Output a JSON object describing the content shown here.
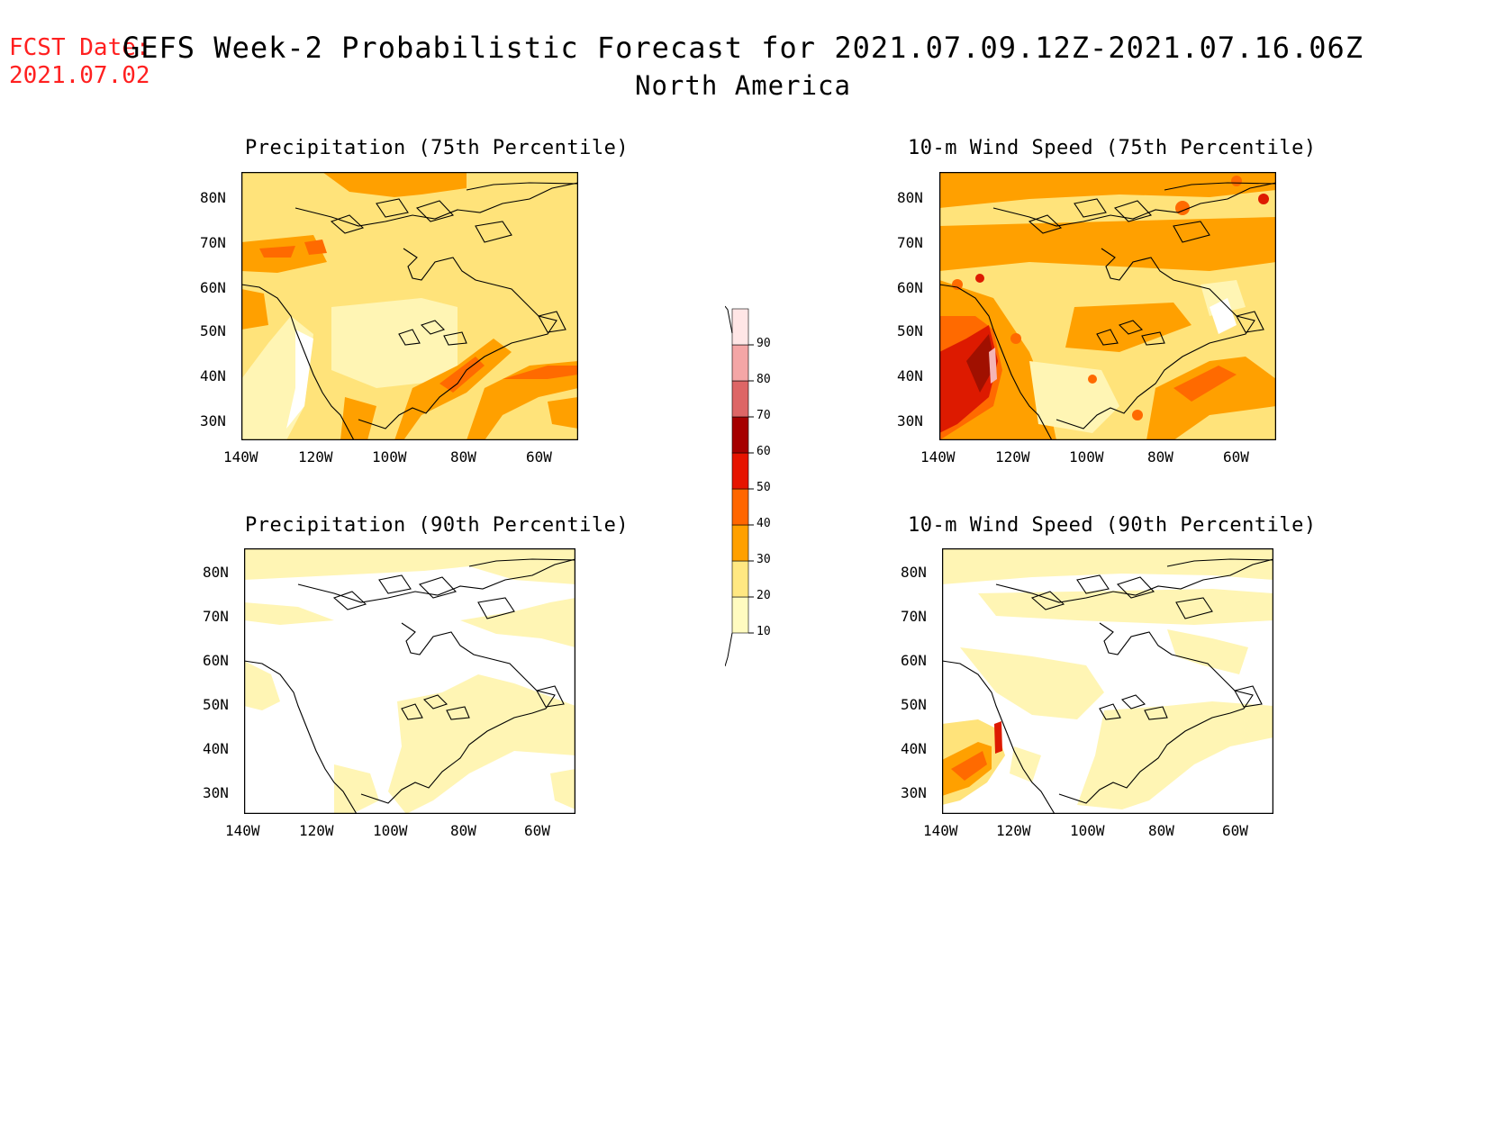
{
  "header": {
    "fcst_label": "FCST Date:",
    "fcst_date": "2021.07.02",
    "title": "GEFS Week-2 Probabilistic Forecast for 2021.07.09.12Z-2021.07.16.06Z",
    "subtitle": "North America"
  },
  "panels": [
    {
      "id": "precip75",
      "title": "Precipitation (75th Percentile)"
    },
    {
      "id": "wind75",
      "title": "10-m Wind Speed (75th Percentile)"
    },
    {
      "id": "precip90",
      "title": "Precipitation (90th Percentile)"
    },
    {
      "id": "wind90",
      "title": "10-m Wind Speed (90th Percentile)"
    }
  ],
  "axes": {
    "lat_labels": [
      "80N",
      "70N",
      "60N",
      "50N",
      "40N",
      "30N"
    ],
    "lon_labels": [
      "140W",
      "120W",
      "100W",
      "80W",
      "60W"
    ]
  },
  "colorbar": {
    "levels": [
      "10",
      "20",
      "30",
      "40",
      "50",
      "60",
      "70",
      "80",
      "90"
    ],
    "colors": [
      "#fffbc0",
      "#ffe882",
      "#ffa000",
      "#ff6600",
      "#e61400",
      "#a50000",
      "#dd6666",
      "#f4a6a6",
      "#ffe6e6"
    ]
  },
  "map_colors": {
    "light": "#fff5b4",
    "yellow": "#ffe37a",
    "orange": "#ffa000",
    "dark_orange": "#ff6a00",
    "red": "#dd1a00",
    "dark_red": "#a01000",
    "pink": "#f4b5b5"
  }
}
